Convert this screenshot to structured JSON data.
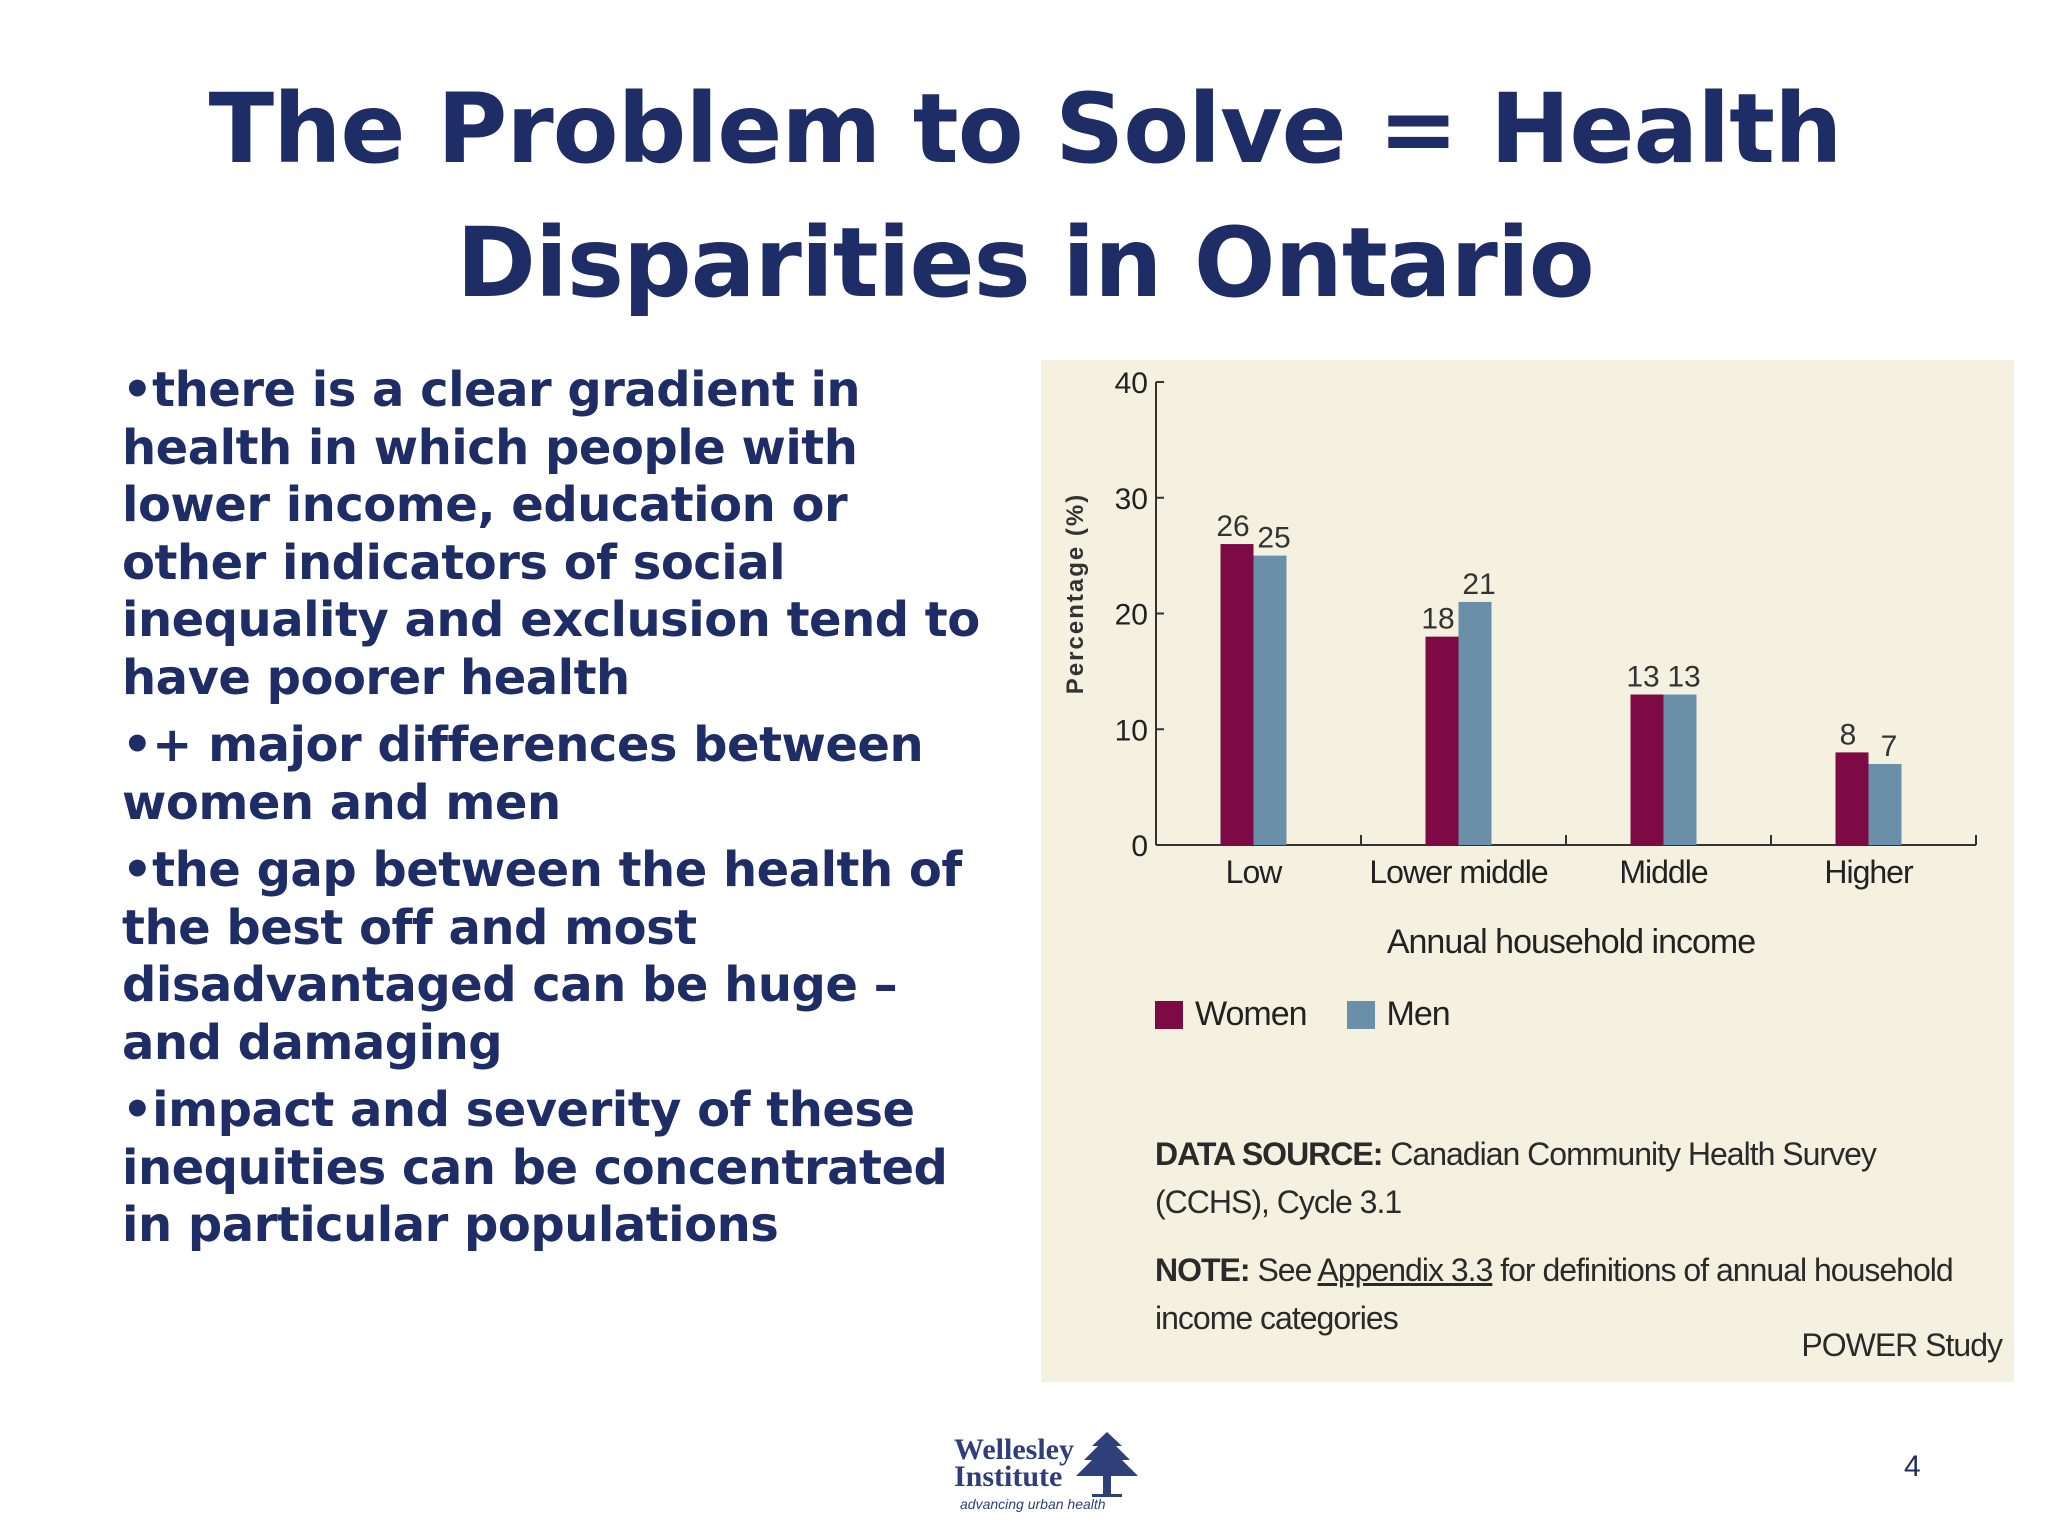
{
  "title": {
    "line1": "The Problem to Solve = Health",
    "line2": "Disparities in Ontario"
  },
  "bullets": [
    "•there is a clear gradient in health in which people with lower income, education or other indicators of social inequality and exclusion tend to have poorer health",
    "•+ major differences between women and men",
    "•the gap between the health of the best off and most disadvantaged can be huge – and damaging",
    "•impact and severity of these inequities can be concentrated in particular populations"
  ],
  "chart_data": {
    "type": "bar",
    "categories": [
      "Low",
      "Lower middle",
      "Middle",
      "Higher"
    ],
    "series": [
      {
        "name": "Women",
        "values": [
          26,
          18,
          13,
          8
        ],
        "color": "#7d0a45"
      },
      {
        "name": "Men",
        "values": [
          25,
          21,
          13,
          7
        ],
        "color": "#6a8fa9"
      }
    ],
    "xlabel": "Annual household income",
    "ylabel": "Percentage (%)",
    "ylim": [
      0,
      40
    ],
    "yticks": [
      0,
      10,
      20,
      30,
      40
    ],
    "data_labels": true,
    "grid": false,
    "legend": "bottom-left"
  },
  "chart_notes": {
    "source_label": "DATA SOURCE:",
    "source_text": "Canadian Community Health Survey (CCHS), Cycle 3.1",
    "note_label": "NOTE:",
    "note_pre": "See",
    "note_link": "Appendix 3.3",
    "note_post": "for definitions of annual household income categories",
    "credit": "POWER Study"
  },
  "logo": {
    "line1": "Wellesley",
    "line2": "Institute",
    "tagline": "advancing urban health"
  },
  "page_number": "4"
}
